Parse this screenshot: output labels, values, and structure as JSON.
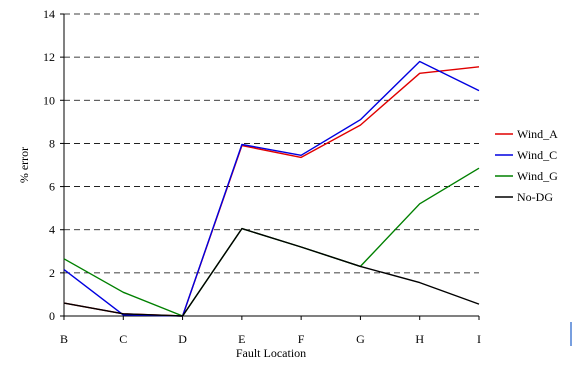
{
  "chart_data": {
    "type": "line",
    "title": "",
    "xlabel": "Fault Location",
    "ylabel": "% error",
    "categories": [
      "B",
      "C",
      "D",
      "E",
      "F",
      "G",
      "H",
      "I"
    ],
    "ylim": [
      0,
      14
    ],
    "yticks": [
      0,
      2,
      4,
      6,
      8,
      10,
      12,
      14
    ],
    "grid": "horizontal-dashed",
    "legend_position": "right",
    "series": [
      {
        "name": "Wind_A",
        "color": "#e00000",
        "values": [
          0.6,
          0.1,
          0.0,
          7.9,
          7.35,
          8.85,
          11.25,
          11.55
        ]
      },
      {
        "name": "Wind_C",
        "color": "#0000e0",
        "values": [
          2.15,
          0.05,
          0.0,
          7.95,
          7.45,
          9.1,
          11.8,
          10.45
        ]
      },
      {
        "name": "Wind_G",
        "color": "#008000",
        "values": [
          2.65,
          1.1,
          0.0,
          4.05,
          3.2,
          2.3,
          5.2,
          6.85
        ]
      },
      {
        "name": "No-DG",
        "color": "#000000",
        "values": [
          0.6,
          0.1,
          0.0,
          4.05,
          3.2,
          2.3,
          1.55,
          0.55
        ]
      }
    ]
  }
}
